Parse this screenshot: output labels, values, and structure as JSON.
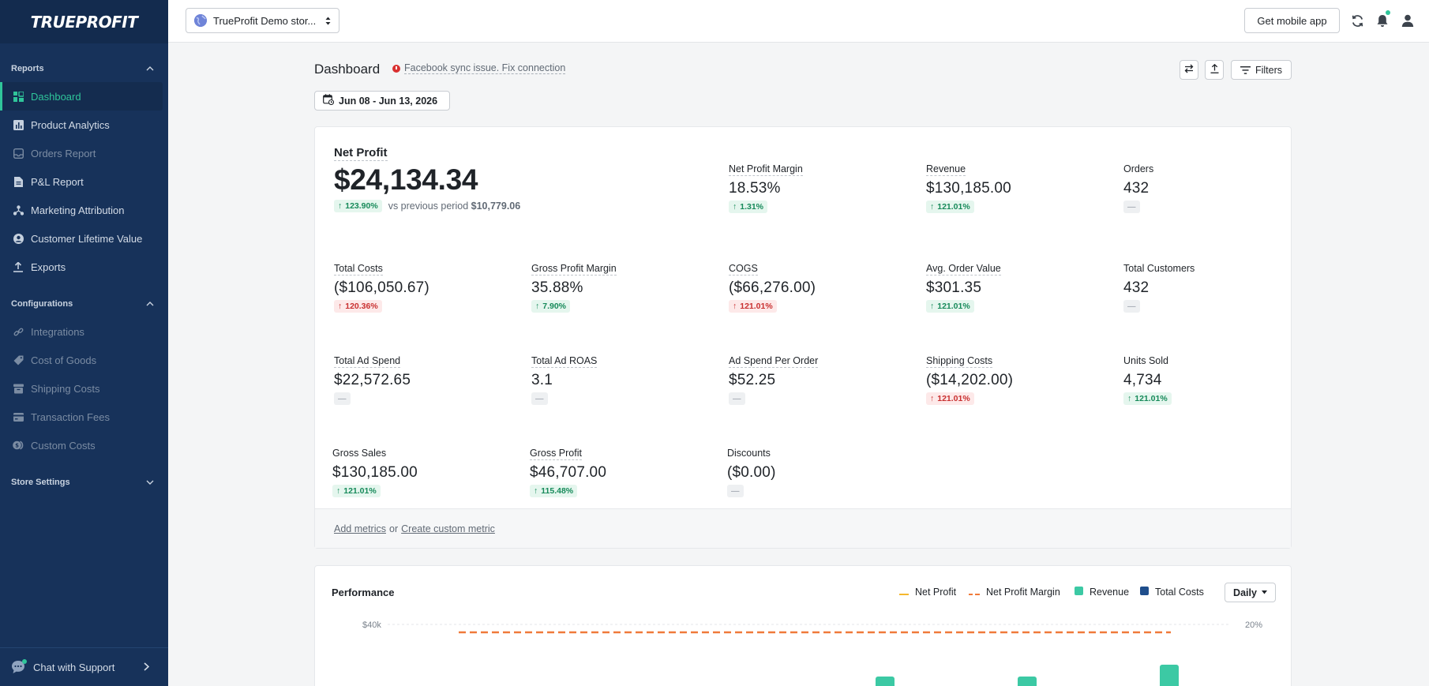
{
  "app": {
    "logo_text": "TRUEPROFIT",
    "store_name": "TrueProfit Demo stor...",
    "mobile_button": "Get mobile app"
  },
  "sidebar": {
    "reports_label": "Reports",
    "reports_items": [
      {
        "label": "Dashboard",
        "icon": "dashboard-icon",
        "active": true
      },
      {
        "label": "Product Analytics",
        "icon": "bar-chart-icon"
      },
      {
        "label": "Orders Report",
        "icon": "inbox-icon",
        "disabled": true
      },
      {
        "label": "P&L Report",
        "icon": "document-icon"
      },
      {
        "label": "Marketing Attribution",
        "icon": "network-icon"
      },
      {
        "label": "Customer Lifetime Value",
        "icon": "user-circle-icon"
      },
      {
        "label": "Exports",
        "icon": "upload-icon"
      }
    ],
    "config_label": "Configurations",
    "config_items": [
      {
        "label": "Integrations",
        "icon": "link-icon"
      },
      {
        "label": "Cost of Goods",
        "icon": "tag-icon"
      },
      {
        "label": "Shipping Costs",
        "icon": "box-icon"
      },
      {
        "label": "Transaction Fees",
        "icon": "card-icon"
      },
      {
        "label": "Custom Costs",
        "icon": "coins-icon"
      }
    ],
    "store_settings_label": "Store Settings",
    "chat_label": "Chat with Support"
  },
  "header": {
    "title": "Dashboard",
    "sync_warning": "Facebook sync issue. Fix connection",
    "filters_label": "Filters",
    "date_range": "Jun 08 - Jun 13, 2026"
  },
  "net_profit": {
    "label": "Net Profit",
    "value": "$24,134.34",
    "change": "123.90%",
    "compare_prefix": "vs previous period",
    "compare_value": "$10,779.06"
  },
  "metrics": [
    {
      "label": "Net Profit Margin",
      "value": "18.53%",
      "change": "1.31%",
      "trend": "green"
    },
    {
      "label": "Revenue",
      "value": "$130,185.00",
      "change": "121.01%",
      "trend": "green"
    },
    {
      "label": "Orders",
      "value": "432",
      "change": "—",
      "trend": "neutral"
    },
    {
      "label": "Total Costs",
      "value": "($106,050.67)",
      "change": "120.36%",
      "trend": "red"
    },
    {
      "label": "Gross Profit Margin",
      "value": "35.88%",
      "change": "7.90%",
      "trend": "green"
    },
    {
      "label": "COGS",
      "value": "($66,276.00)",
      "change": "121.01%",
      "trend": "red"
    },
    {
      "label": "Avg. Order Value",
      "value": "$301.35",
      "change": "121.01%",
      "trend": "green"
    },
    {
      "label": "Total Customers",
      "value": "432",
      "change": "—",
      "trend": "neutral"
    },
    {
      "label": "Total Ad Spend",
      "value": "$22,572.65",
      "change": "—",
      "trend": "neutral"
    },
    {
      "label": "Total Ad ROAS",
      "value": "3.1",
      "change": "—",
      "trend": "neutral"
    },
    {
      "label": "Ad Spend Per Order",
      "value": "$52.25",
      "change": "—",
      "trend": "neutral"
    },
    {
      "label": "Shipping Costs",
      "value": "($14,202.00)",
      "change": "121.01%",
      "trend": "red"
    },
    {
      "label": "Units Sold",
      "value": "4,734",
      "change": "121.01%",
      "trend": "green"
    },
    {
      "label": "Gross Sales",
      "value": "$130,185.00",
      "change": "121.01%",
      "trend": "green"
    },
    {
      "label": "Gross Profit",
      "value": "$46,707.00",
      "change": "115.48%",
      "trend": "green"
    },
    {
      "label": "Discounts",
      "value": "($0.00)",
      "change": "—",
      "trend": "neutral"
    }
  ],
  "card_footer": {
    "add_metrics": "Add metrics",
    "or": "or",
    "create_custom": "Create custom metric"
  },
  "performance": {
    "title": "Performance",
    "legend": [
      {
        "label": "Net Profit",
        "color": "#f5b82e"
      },
      {
        "label": "Net Profit Margin",
        "color": "#f07a3a"
      },
      {
        "label": "Revenue",
        "color": "#3cc9a4"
      },
      {
        "label": "Total Costs",
        "color": "#1f4e8c"
      }
    ],
    "interval": "Daily"
  },
  "chart_data": {
    "type": "bar",
    "ytick_left": "$40k",
    "ytick_right": "20%"
  },
  "colors": {
    "accent": "#2fc59a",
    "sidebar_bg": "#17325a",
    "error": "#d93030"
  }
}
